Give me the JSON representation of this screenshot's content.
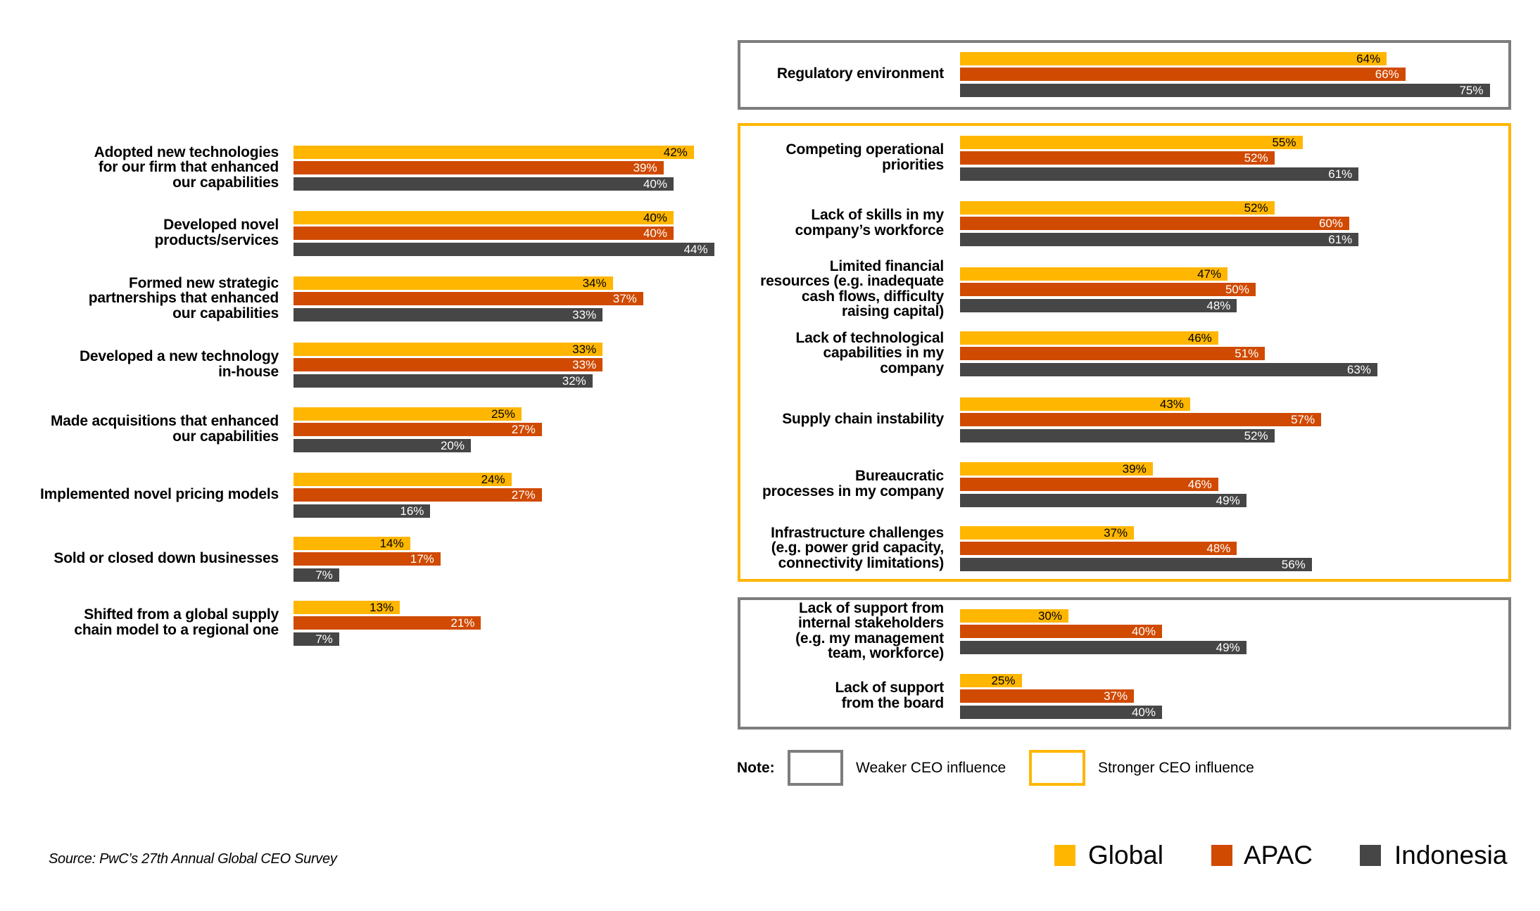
{
  "colors": {
    "global": "#FFB600",
    "apac": "#D04A02",
    "indonesia": "#464646",
    "weaker_frame": "#7D7D7D",
    "stronger_frame": "#FFB600"
  },
  "chart_data": [
    {
      "type": "bar",
      "orientation": "horizontal",
      "title": "",
      "categories": [
        "Adopted new technologies for our firm that enhanced our capabilities",
        "Developed novel products/services",
        "Formed new strategic partnerships that enhanced our capabilities",
        "Developed a new technology in-house",
        "Made acquisitions that enhanced our capabilities",
        "Implemented novel pricing models",
        "Sold or closed down businesses",
        "Shifted from a global supply chain model to a regional one"
      ],
      "category_lines": [
        [
          "Adopted new technologies",
          "for our firm that enhanced",
          "our capabilities"
        ],
        [
          "Developed novel",
          "products/services"
        ],
        [
          "Formed new strategic",
          "partnerships that enhanced",
          "our capabilities"
        ],
        [
          "Developed a new technology",
          "in-house"
        ],
        [
          "Made acquisitions that enhanced",
          "our capabilities"
        ],
        [
          "Implemented novel pricing models"
        ],
        [
          "Sold or closed down businesses"
        ],
        [
          "Shifted from a global supply",
          "chain model to a regional one"
        ]
      ],
      "series": [
        {
          "name": "Global",
          "values": [
            42,
            40,
            34,
            33,
            25,
            24,
            14,
            13
          ]
        },
        {
          "name": "APAC",
          "values": [
            39,
            40,
            37,
            33,
            27,
            27,
            17,
            21
          ]
        },
        {
          "name": "Indonesia",
          "values": [
            40,
            44,
            33,
            32,
            20,
            16,
            7,
            7
          ]
        }
      ],
      "unit": "%",
      "xlabel": "",
      "ylabel": "",
      "grid": false
    },
    {
      "type": "bar",
      "orientation": "horizontal",
      "title": "",
      "groups": [
        {
          "influence": "Weaker CEO influence",
          "categories": [
            {
              "lines": [
                "Regulatory environment"
              ],
              "values": [
                64,
                66,
                75
              ]
            }
          ]
        },
        {
          "influence": "Stronger CEO influence",
          "categories": [
            {
              "lines": [
                "Competing operational",
                "priorities"
              ],
              "values": [
                55,
                52,
                61
              ]
            },
            {
              "lines": [
                "Lack of skills in my",
                "company’s workforce"
              ],
              "values": [
                52,
                60,
                61
              ]
            },
            {
              "lines": [
                "Limited financial",
                "resources (e.g. inadequate",
                "cash flows, difficulty",
                "raising capital)"
              ],
              "values": [
                47,
                50,
                48
              ]
            },
            {
              "lines": [
                "Lack of technological",
                "capabilities in my",
                "company"
              ],
              "values": [
                46,
                51,
                63
              ]
            },
            {
              "lines": [
                "Supply chain instability"
              ],
              "values": [
                43,
                57,
                52
              ]
            },
            {
              "lines": [
                "Bureaucratic",
                "processes in my company"
              ],
              "values": [
                39,
                46,
                49
              ]
            },
            {
              "lines": [
                "Infrastructure challenges",
                "(e.g. power grid capacity,",
                "connectivity limitations)"
              ],
              "values": [
                37,
                48,
                56
              ]
            }
          ]
        },
        {
          "influence": "Weaker CEO influence",
          "categories": [
            {
              "lines": [
                "Lack of support from",
                "internal stakeholders",
                "(e.g. my management",
                "team, workforce)"
              ],
              "values": [
                30,
                40,
                49
              ]
            },
            {
              "lines": [
                "Lack of support",
                "from the board"
              ],
              "values": [
                25,
                37,
                40
              ]
            }
          ]
        }
      ],
      "series_names": [
        "Global",
        "APAC",
        "Indonesia"
      ],
      "unit": "%",
      "grid": false
    }
  ],
  "note": {
    "label": "Note:",
    "weaker": "Weaker CEO influence",
    "stronger": "Stronger CEO influence"
  },
  "legend": [
    {
      "name": "Global",
      "color": "#FFB600"
    },
    {
      "name": "APAC",
      "color": "#D04A02"
    },
    {
      "name": "Indonesia",
      "color": "#464646"
    }
  ],
  "source": "Source: PwC’s 27th Annual Global CEO Survey"
}
